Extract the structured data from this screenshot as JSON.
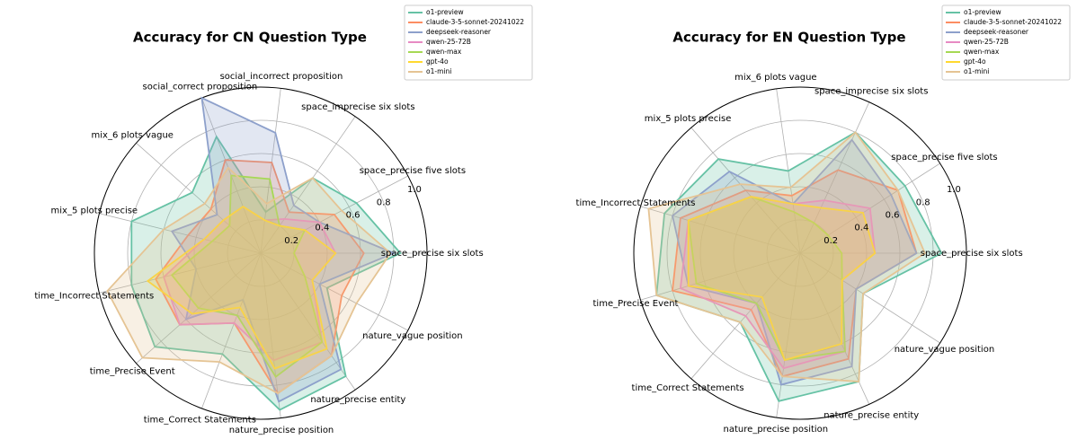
{
  "chart_data": [
    {
      "type": "radar",
      "title": "Accuracy for CN Question Type",
      "categories": [
        "space_precise six slots",
        "space_precise five slots",
        "space_imprecise six slots",
        "social_incorrect proposition",
        "social_correct proposition",
        "mix_6 plots vague",
        "mix_5 plots precise",
        "time_Incorrect Statements",
        "time_Precise Event",
        "time_Correct Statements",
        "nature_precise position",
        "nature_precise entity",
        "nature_vague position"
      ],
      "rlim": [
        0,
        1
      ],
      "rticks": [
        0.2,
        0.4,
        0.6,
        0.8,
        {
          "value": 1,
          "label": "1.0"
        }
      ],
      "grid": true,
      "legend": "upper right",
      "series": [
        {
          "name": "o1-preview",
          "color": "#66c2a5",
          "values": [
            0.84,
            0.65,
            0.55,
            0.25,
            0.75,
            0.55,
            0.8,
            0.8,
            0.85,
            0.65,
            0.95,
            0.9,
            0.45
          ]
        },
        {
          "name": "claude-3-5-sonnet-20241022",
          "color": "#fc8d62",
          "values": [
            0.62,
            0.5,
            0.3,
            0.55,
            0.6,
            0.4,
            0.45,
            0.65,
            0.65,
            0.45,
            0.85,
            0.75,
            0.55
          ]
        },
        {
          "name": "deepseek-reasoner",
          "color": "#8da0cb",
          "values": [
            0.8,
            0.4,
            0.35,
            0.73,
            1.0,
            0.35,
            0.55,
            0.4,
            0.6,
            0.3,
            0.9,
            0.85,
            0.4
          ]
        },
        {
          "name": "qwen-25-72B",
          "color": "#e78ac3",
          "values": [
            0.45,
            0.4,
            0.25,
            0.2,
            0.3,
            0.3,
            0.35,
            0.6,
            0.65,
            0.45,
            0.65,
            0.65,
            0.35
          ]
        },
        {
          "name": "qwen-max",
          "color": "#a6d854",
          "values": [
            0.2,
            0.3,
            0.2,
            0.45,
            0.5,
            0.25,
            0.3,
            0.55,
            0.5,
            0.4,
            0.75,
            0.65,
            0.3
          ]
        },
        {
          "name": "gpt-4o",
          "color": "#ffd92f",
          "values": [
            0.45,
            0.3,
            0.2,
            0.2,
            0.3,
            0.3,
            0.35,
            0.7,
            0.55,
            0.35,
            0.7,
            0.7,
            0.35
          ]
        },
        {
          "name": "o1-mini",
          "color": "#e5c494",
          "values": [
            0.78,
            0.55,
            0.55,
            0.3,
            0.55,
            0.45,
            0.6,
            0.95,
            0.95,
            0.7,
            0.85,
            0.75,
            0.65
          ]
        }
      ]
    },
    {
      "type": "radar",
      "title": "Accuracy for EN Question Type",
      "categories": [
        "space_precise six slots",
        "space_precise five slots",
        "space_imprecise six slots",
        "mix_6 plots vague",
        "mix_5 plots precise",
        "time_Incorrect Statements",
        "time_Precise Event",
        "time_Correct Statements",
        "nature_precise position",
        "nature_precise entity",
        "nature_vague position"
      ],
      "rlim": [
        0,
        1
      ],
      "rticks": [
        0.2,
        0.4,
        0.6,
        0.8,
        {
          "value": 1,
          "label": "1.0"
        }
      ],
      "grid": true,
      "legend": "upper right",
      "series": [
        {
          "name": "o1-preview",
          "color": "#66c2a5",
          "values": [
            0.85,
            0.75,
            0.8,
            0.5,
            0.75,
            0.85,
            0.9,
            0.55,
            0.9,
            0.85,
            0.45
          ]
        },
        {
          "name": "claude-3-5-sonnet-20241022",
          "color": "#fc8d62",
          "values": [
            0.7,
            0.7,
            0.55,
            0.35,
            0.5,
            0.75,
            0.8,
            0.45,
            0.75,
            0.7,
            0.4
          ]
        },
        {
          "name": "deepseek-reasoner",
          "color": "#8da0cb",
          "values": [
            0.7,
            0.65,
            0.75,
            0.3,
            0.65,
            0.8,
            0.7,
            0.4,
            0.8,
            0.75,
            0.4
          ]
        },
        {
          "name": "qwen-25-72B",
          "color": "#e78ac3",
          "values": [
            0.45,
            0.5,
            0.35,
            0.3,
            0.45,
            0.7,
            0.75,
            0.5,
            0.7,
            0.65,
            0.3
          ]
        },
        {
          "name": "qwen-max",
          "color": "#a6d854",
          "values": [
            0.25,
            0.2,
            0.2,
            0.25,
            0.45,
            0.7,
            0.65,
            0.4,
            0.65,
            0.65,
            0.3
          ]
        },
        {
          "name": "gpt-4o",
          "color": "#ffd92f",
          "values": [
            0.45,
            0.45,
            0.3,
            0.3,
            0.45,
            0.7,
            0.7,
            0.35,
            0.65,
            0.6,
            0.3
          ]
        },
        {
          "name": "o1-mini",
          "color": "#e5c494",
          "values": [
            0.75,
            0.7,
            0.8,
            0.4,
            0.55,
            0.95,
            0.9,
            0.55,
            0.75,
            0.85,
            0.45
          ]
        }
      ]
    }
  ]
}
